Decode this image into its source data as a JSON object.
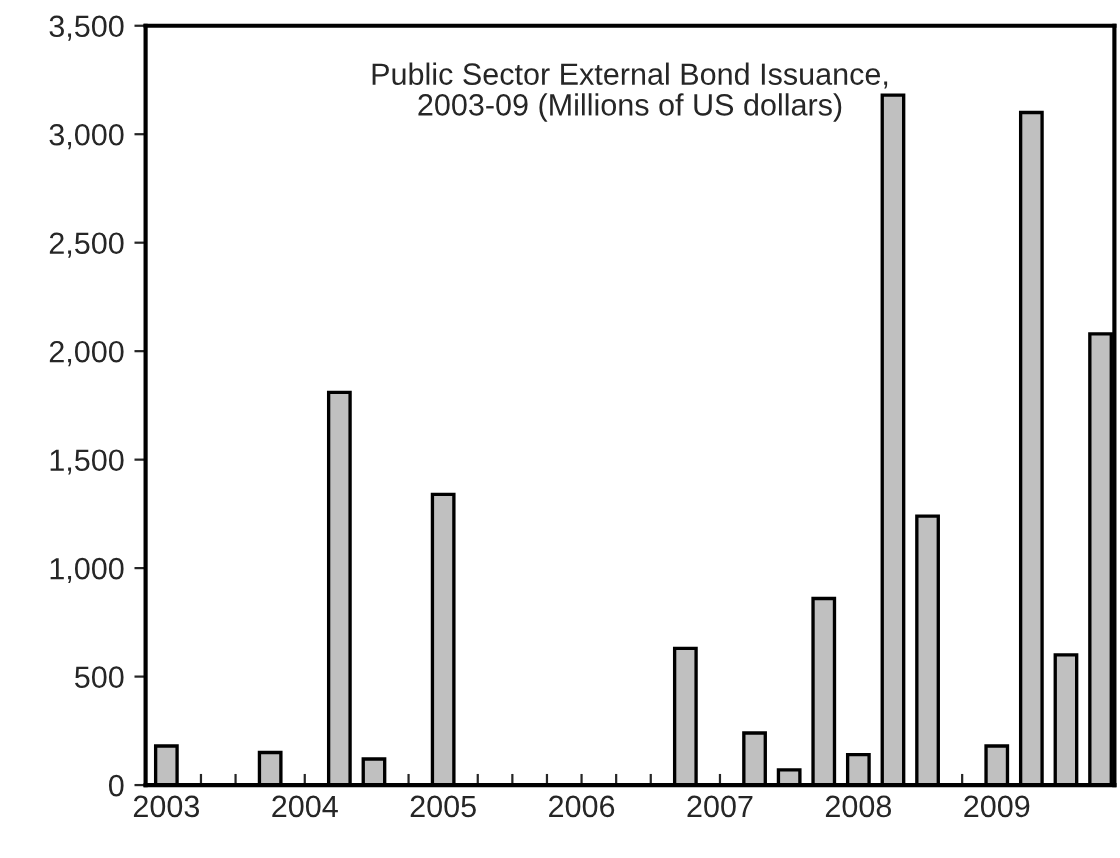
{
  "chart_data": {
    "type": "bar",
    "title": "Public Sector External Bond Issuance,\n2003-09 (Millions of US dollars)",
    "categories": [
      "2003",
      null,
      null,
      null,
      "2004",
      null,
      null,
      null,
      "2005",
      null,
      null,
      null,
      "2006",
      null,
      null,
      null,
      "2007",
      null,
      null,
      null,
      "2008",
      null,
      null,
      null,
      "2009",
      null,
      null,
      null
    ],
    "values": [
      180,
      0,
      0,
      150,
      0,
      1810,
      120,
      0,
      1340,
      0,
      0,
      0,
      0,
      0,
      0,
      630,
      0,
      240,
      70,
      860,
      140,
      3180,
      1240,
      0,
      180,
      3100,
      600,
      2080
    ],
    "color": "#c0c0c0",
    "ylim": [
      0,
      3500
    ],
    "yticks": [
      {
        "value": 0,
        "label": "0"
      },
      {
        "value": 500,
        "label": "500"
      },
      {
        "value": 1000,
        "label": "1,000"
      },
      {
        "value": 1500,
        "label": "1,500"
      },
      {
        "value": 2000,
        "label": "2,000"
      },
      {
        "value": 2500,
        "label": "2,500"
      },
      {
        "value": 3000,
        "label": "3,000"
      },
      {
        "value": 3500,
        "label": "3,500"
      }
    ],
    "grid": false,
    "legend": false
  }
}
